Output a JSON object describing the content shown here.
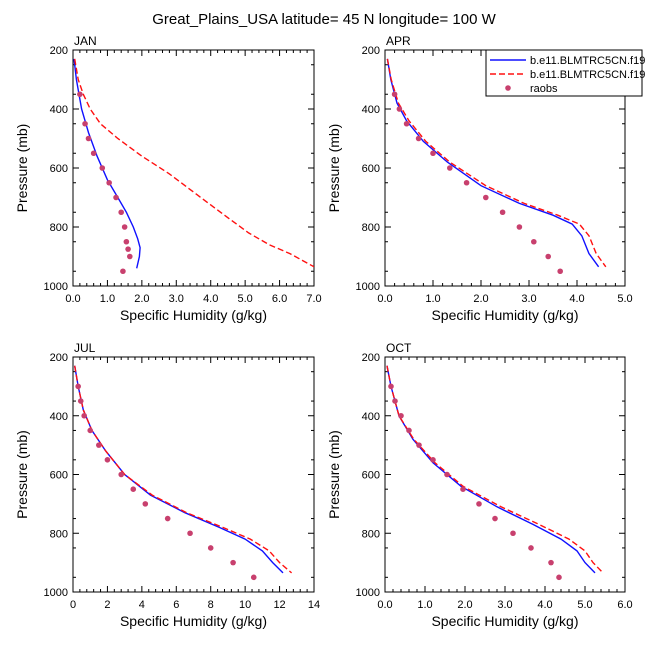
{
  "title": "Great_Plains_USA  latitude= 45 N longitude= 100 W",
  "colors": {
    "model1": "#1010ff",
    "model2": "#ff1010",
    "raobs": "#c8406e",
    "axis": "#000000"
  },
  "legend": {
    "entries": [
      {
        "label": "b.e11.BLMTRC5CN.f19",
        "style": "solid",
        "color_key": "model1"
      },
      {
        "label": "b.e11.BLMTRC5CN.f19",
        "style": "dashed",
        "color_key": "model2"
      },
      {
        "label": "raobs",
        "style": "marker",
        "color_key": "raobs"
      }
    ]
  },
  "chart_data": [
    {
      "type": "line",
      "label": "JAN",
      "xlabel": "Specific Humidity (g/kg)",
      "ylabel": "Pressure (mb)",
      "xlim": [
        0,
        7
      ],
      "xticks": [
        0,
        1,
        2,
        3,
        4,
        5,
        6,
        7
      ],
      "xtick_labels": [
        "0.0",
        "1.0",
        "2.0",
        "3.0",
        "4.0",
        "5.0",
        "6.0",
        "7.0"
      ],
      "ylim": [
        200,
        1000
      ],
      "yticks": [
        200,
        400,
        600,
        800,
        1000
      ],
      "ytick_labels": [
        "200",
        "400",
        "600",
        "800",
        "1000"
      ],
      "series": [
        {
          "name": "b.e11.BLMTRC5CN.f19",
          "style": "solid",
          "x": [
            0.03,
            0.1,
            0.25,
            0.45,
            0.7,
            1.0,
            1.3,
            1.55,
            1.75,
            1.88,
            1.95,
            1.93,
            1.85
          ],
          "y": [
            230,
            300,
            400,
            480,
            560,
            640,
            700,
            750,
            800,
            840,
            870,
            900,
            940
          ]
        },
        {
          "name": "b.e11.BLMTRC5CN.f19",
          "style": "dashed",
          "x": [
            0.05,
            0.15,
            0.3,
            0.5,
            0.8,
            1.3,
            2.0,
            2.8,
            3.6,
            4.4,
            5.1,
            5.7,
            6.3,
            7.0
          ],
          "y": [
            230,
            300,
            350,
            400,
            450,
            500,
            560,
            620,
            690,
            760,
            820,
            860,
            890,
            935
          ]
        },
        {
          "name": "raobs",
          "style": "marker",
          "x": [
            0.2,
            0.35,
            0.45,
            0.6,
            0.85,
            1.05,
            1.25,
            1.4,
            1.5,
            1.55,
            1.6,
            1.65,
            1.45
          ],
          "y": [
            350,
            450,
            500,
            550,
            600,
            650,
            700,
            750,
            800,
            850,
            875,
            900,
            950
          ]
        }
      ]
    },
    {
      "type": "line",
      "label": "APR",
      "xlabel": "Specific Humidity (g/kg)",
      "ylabel": "Pressure (mb)",
      "xlim": [
        0,
        5
      ],
      "xticks": [
        0,
        1,
        2,
        3,
        4,
        5
      ],
      "xtick_labels": [
        "0.0",
        "1.0",
        "2.0",
        "3.0",
        "4.0",
        "5.0"
      ],
      "ylim": [
        200,
        1000
      ],
      "yticks": [
        200,
        400,
        600,
        800,
        1000
      ],
      "ytick_labels": [
        "200",
        "400",
        "600",
        "800",
        "1000"
      ],
      "series": [
        {
          "name": "b.e11.BLMTRC5CN.f19",
          "style": "solid",
          "x": [
            0.05,
            0.12,
            0.25,
            0.45,
            0.8,
            1.3,
            2.0,
            2.8,
            3.5,
            3.9,
            4.1,
            4.25,
            4.45
          ],
          "y": [
            230,
            300,
            380,
            440,
            510,
            580,
            660,
            720,
            760,
            790,
            830,
            890,
            935
          ]
        },
        {
          "name": "b.e11.BLMTRC5CN.f19",
          "style": "dashed",
          "x": [
            0.05,
            0.13,
            0.28,
            0.5,
            0.85,
            1.35,
            2.1,
            2.9,
            3.6,
            4.05,
            4.25,
            4.4,
            4.6
          ],
          "y": [
            230,
            300,
            380,
            440,
            510,
            580,
            660,
            720,
            760,
            790,
            830,
            890,
            935
          ]
        },
        {
          "name": "raobs",
          "style": "marker",
          "x": [
            0.2,
            0.3,
            0.45,
            0.7,
            1.0,
            1.35,
            1.7,
            2.1,
            2.45,
            2.8,
            3.1,
            3.4,
            3.65
          ],
          "y": [
            350,
            400,
            450,
            500,
            550,
            600,
            650,
            700,
            750,
            800,
            850,
            900,
            950
          ]
        }
      ]
    },
    {
      "type": "line",
      "label": "JUL",
      "xlabel": "Specific Humidity (g/kg)",
      "ylabel": "Pressure (mb)",
      "xlim": [
        0,
        14
      ],
      "xticks": [
        0,
        2,
        4,
        6,
        8,
        10,
        12,
        14
      ],
      "xtick_labels": [
        "0",
        "2",
        "4",
        "6",
        "8",
        "10",
        "12",
        "14"
      ],
      "ylim": [
        200,
        1000
      ],
      "yticks": [
        200,
        400,
        600,
        800,
        1000
      ],
      "ytick_labels": [
        "200",
        "400",
        "600",
        "800",
        "1000"
      ],
      "series": [
        {
          "name": "b.e11.BLMTRC5CN.f19",
          "style": "solid",
          "x": [
            0.1,
            0.3,
            0.6,
            1.1,
            1.9,
            3.0,
            4.5,
            6.5,
            8.5,
            10.0,
            11.0,
            11.6,
            12.2
          ],
          "y": [
            230,
            300,
            380,
            450,
            520,
            600,
            670,
            730,
            780,
            820,
            860,
            900,
            935
          ]
        },
        {
          "name": "b.e11.BLMTRC5CN.f19",
          "style": "dashed",
          "x": [
            0.1,
            0.3,
            0.6,
            1.1,
            1.9,
            3.0,
            4.6,
            6.6,
            8.7,
            10.3,
            11.4,
            12.0,
            12.7
          ],
          "y": [
            230,
            300,
            380,
            450,
            520,
            600,
            670,
            730,
            780,
            820,
            860,
            900,
            935
          ]
        },
        {
          "name": "raobs",
          "style": "marker",
          "x": [
            0.3,
            0.45,
            0.65,
            1.0,
            1.5,
            2.0,
            2.8,
            3.5,
            4.2,
            5.5,
            6.8,
            8.0,
            9.3,
            10.5
          ],
          "y": [
            300,
            350,
            400,
            450,
            500,
            550,
            600,
            650,
            700,
            750,
            800,
            850,
            900,
            950
          ]
        }
      ]
    },
    {
      "type": "line",
      "label": "OCT",
      "xlabel": "Specific Humidity (g/kg)",
      "ylabel": "Pressure (mb)",
      "xlim": [
        0,
        6
      ],
      "xticks": [
        0,
        1,
        2,
        3,
        4,
        5,
        6
      ],
      "xtick_labels": [
        "0.0",
        "1.0",
        "2.0",
        "3.0",
        "4.0",
        "5.0",
        "6.0"
      ],
      "ylim": [
        200,
        1000
      ],
      "yticks": [
        200,
        400,
        600,
        800,
        1000
      ],
      "ytick_labels": [
        "200",
        "400",
        "600",
        "800",
        "1000"
      ],
      "series": [
        {
          "name": "b.e11.BLMTRC5CN.f19",
          "style": "solid",
          "x": [
            0.05,
            0.15,
            0.35,
            0.7,
            1.2,
            1.9,
            2.8,
            3.7,
            4.4,
            4.8,
            5.0,
            5.25
          ],
          "y": [
            230,
            300,
            400,
            480,
            560,
            640,
            710,
            770,
            820,
            860,
            900,
            935
          ]
        },
        {
          "name": "b.e11.BLMTRC5CN.f19",
          "style": "dashed",
          "x": [
            0.05,
            0.15,
            0.35,
            0.72,
            1.25,
            1.95,
            2.9,
            3.85,
            4.6,
            5.0,
            5.2,
            5.45
          ],
          "y": [
            230,
            300,
            400,
            480,
            560,
            640,
            710,
            770,
            820,
            860,
            900,
            935
          ]
        },
        {
          "name": "raobs",
          "style": "marker",
          "x": [
            0.15,
            0.25,
            0.4,
            0.6,
            0.85,
            1.2,
            1.55,
            1.95,
            2.35,
            2.75,
            3.2,
            3.65,
            4.15,
            4.35
          ],
          "y": [
            300,
            350,
            400,
            450,
            500,
            550,
            600,
            650,
            700,
            750,
            800,
            850,
            900,
            950
          ]
        }
      ]
    }
  ]
}
